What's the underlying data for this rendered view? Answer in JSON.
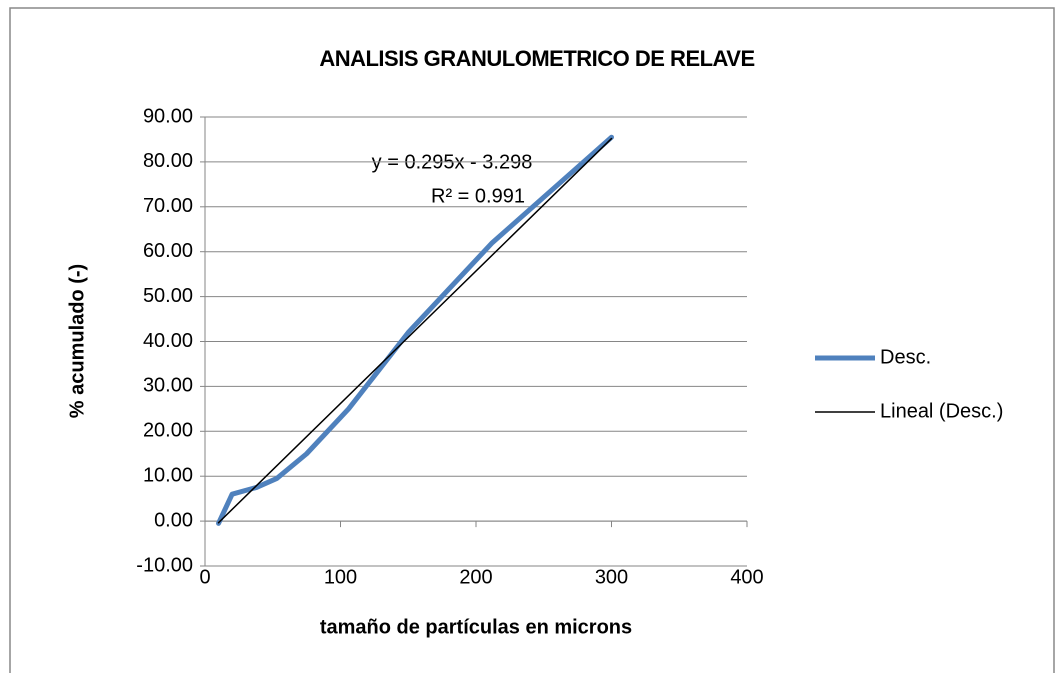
{
  "chart_data": {
    "type": "line",
    "title": "ANALISIS GRANULOMETRICO DE RELAVE",
    "xlabel": "tamaño de partículas en microns",
    "ylabel": "% acumulado  (-)",
    "annotations": [
      "y = 0.295x - 3.298",
      "R² = 0.991"
    ],
    "series": [
      {
        "name": "Desc.",
        "color": "#4f81bd",
        "x": [
          10,
          20,
          38,
          53,
          75,
          106,
          150,
          212,
          300
        ],
        "values": [
          -0.5,
          6,
          7.5,
          9.5,
          15,
          25,
          42,
          62,
          85.5
        ]
      },
      {
        "name": "Lineal (Desc.)",
        "color": "#000000",
        "x": [
          10,
          300
        ],
        "values": [
          -0.35,
          85.2
        ]
      }
    ],
    "xlim": [
      0,
      400
    ],
    "xticks": [
      0,
      100,
      200,
      300,
      400
    ],
    "ylim": [
      -10,
      90
    ],
    "yticks": [
      {
        "value": -10,
        "label": "-10.00"
      },
      {
        "value": 0,
        "label": "0.00"
      },
      {
        "value": 10,
        "label": "10.00"
      },
      {
        "value": 20,
        "label": "20.00"
      },
      {
        "value": 30,
        "label": "30.00"
      },
      {
        "value": 40,
        "label": "40.00"
      },
      {
        "value": 50,
        "label": "50.00"
      },
      {
        "value": 60,
        "label": "60.00"
      },
      {
        "value": 70,
        "label": "70.00"
      },
      {
        "value": 80,
        "label": "80.00"
      },
      {
        "value": 90,
        "label": "90.00"
      }
    ],
    "grid": true,
    "legend": "right"
  }
}
